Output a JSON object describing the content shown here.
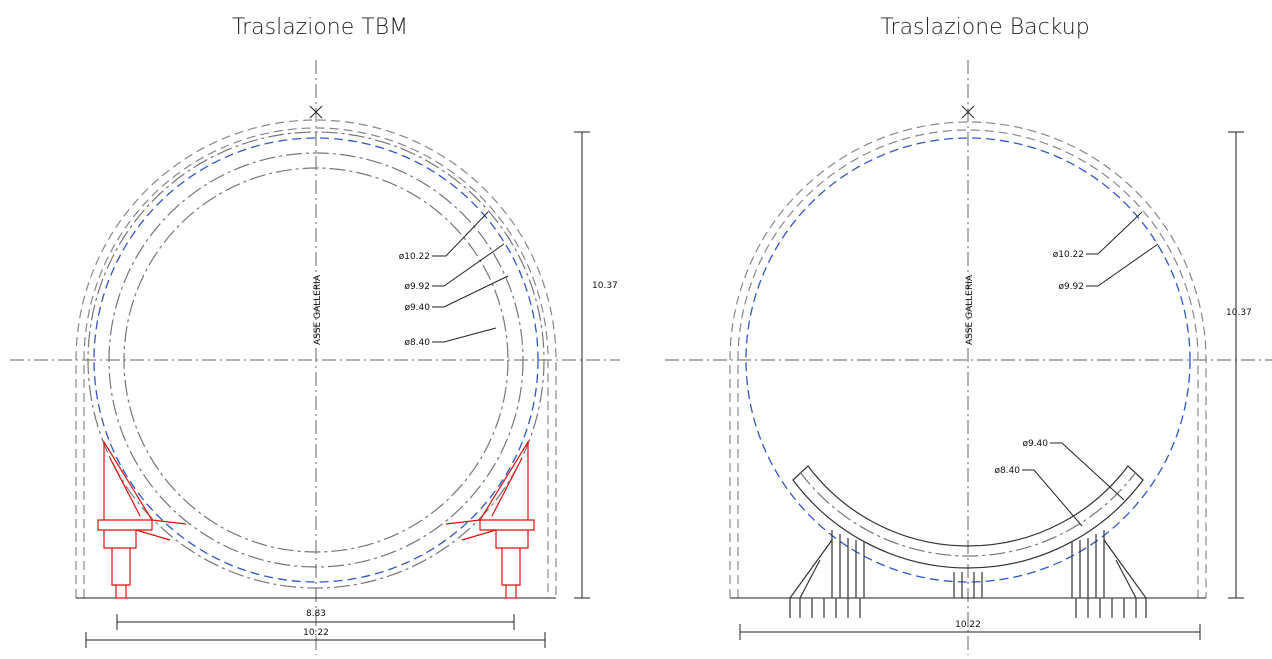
{
  "panels": [
    {
      "title": "Traslazione TBM",
      "axis_label": "ASSE GALLERIA",
      "diameters": [
        "ø10.22",
        "ø9.92",
        "ø9.40",
        "ø8.40"
      ],
      "dimensions": [
        "8.83",
        "10.22",
        "10.37"
      ]
    },
    {
      "title": "Traslazione Backup",
      "axis_label": "ASSE GALLERIA",
      "diameters": [
        "ø10.22",
        "ø9.92",
        "ø9.40",
        "ø8.40"
      ],
      "dimensions": [
        "10.22",
        "10.37"
      ]
    }
  ]
}
